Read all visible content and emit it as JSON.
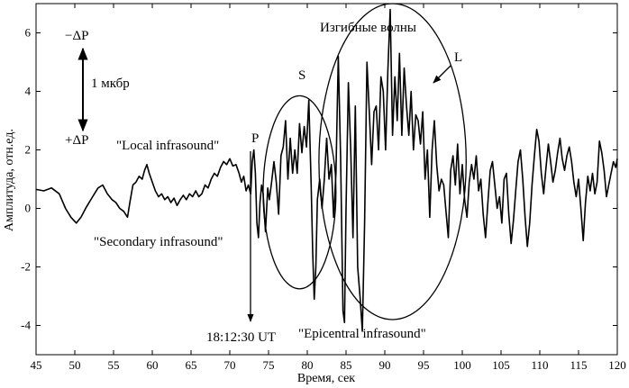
{
  "chart_data": {
    "type": "line",
    "xlabel": "Время, сек",
    "ylabel": "Амплитуда, отн.ед.",
    "xlim": [
      45,
      120
    ],
    "ylim": [
      -5,
      7
    ],
    "x_ticks": [
      45,
      50,
      55,
      60,
      65,
      70,
      75,
      80,
      85,
      90,
      95,
      100,
      105,
      110,
      115,
      120
    ],
    "y_ticks": [
      -4,
      -2,
      0,
      2,
      4,
      6
    ],
    "grid": false,
    "series": [
      {
        "color": "#000000",
        "points": [
          [
            45.0,
            0.65
          ],
          [
            46.0,
            0.6
          ],
          [
            47.0,
            0.7
          ],
          [
            48.0,
            0.5
          ],
          [
            48.8,
            0.0
          ],
          [
            49.5,
            -0.3
          ],
          [
            50.2,
            -0.5
          ],
          [
            50.8,
            -0.3
          ],
          [
            51.5,
            0.05
          ],
          [
            52.3,
            0.4
          ],
          [
            53.0,
            0.7
          ],
          [
            53.6,
            0.8
          ],
          [
            54.2,
            0.5
          ],
          [
            54.8,
            0.3
          ],
          [
            55.3,
            0.2
          ],
          [
            55.8,
            0.0
          ],
          [
            56.3,
            -0.1
          ],
          [
            56.8,
            -0.3
          ],
          [
            57.1,
            0.2
          ],
          [
            57.5,
            0.8
          ],
          [
            57.9,
            0.9
          ],
          [
            58.3,
            1.1
          ],
          [
            58.7,
            1.0
          ],
          [
            59.0,
            1.3
          ],
          [
            59.3,
            1.5
          ],
          [
            59.6,
            1.2
          ],
          [
            60.0,
            0.9
          ],
          [
            60.4,
            0.6
          ],
          [
            60.8,
            0.4
          ],
          [
            61.2,
            0.5
          ],
          [
            61.6,
            0.3
          ],
          [
            62.0,
            0.4
          ],
          [
            62.4,
            0.2
          ],
          [
            62.8,
            0.35
          ],
          [
            63.2,
            0.1
          ],
          [
            63.6,
            0.3
          ],
          [
            64.0,
            0.45
          ],
          [
            64.4,
            0.3
          ],
          [
            64.8,
            0.5
          ],
          [
            65.2,
            0.4
          ],
          [
            65.6,
            0.6
          ],
          [
            66.0,
            0.4
          ],
          [
            66.4,
            0.5
          ],
          [
            66.8,
            0.8
          ],
          [
            67.2,
            0.7
          ],
          [
            67.6,
            1.0
          ],
          [
            68.0,
            1.2
          ],
          [
            68.4,
            1.1
          ],
          [
            68.8,
            1.4
          ],
          [
            69.2,
            1.6
          ],
          [
            69.6,
            1.5
          ],
          [
            70.0,
            1.7
          ],
          [
            70.4,
            1.45
          ],
          [
            70.8,
            1.5
          ],
          [
            71.2,
            1.2
          ],
          [
            71.5,
            0.9
          ],
          [
            71.8,
            1.1
          ],
          [
            72.1,
            0.6
          ],
          [
            72.4,
            0.8
          ],
          [
            72.7,
            0.5
          ],
          [
            72.9,
            1.6
          ],
          [
            73.1,
            2.0
          ],
          [
            73.3,
            1.2
          ],
          [
            73.5,
            -0.5
          ],
          [
            73.7,
            -1.0
          ],
          [
            73.9,
            0.2
          ],
          [
            74.1,
            0.8
          ],
          [
            74.3,
            0.5
          ],
          [
            74.6,
            -0.8
          ],
          [
            74.9,
            0.7
          ],
          [
            75.1,
            0.3
          ],
          [
            75.4,
            0.9
          ],
          [
            75.7,
            1.6
          ],
          [
            76.0,
            0.9
          ],
          [
            76.3,
            -0.2
          ],
          [
            76.6,
            1.8
          ],
          [
            76.9,
            2.1
          ],
          [
            77.2,
            3.0
          ],
          [
            77.5,
            1.0
          ],
          [
            77.8,
            2.4
          ],
          [
            78.1,
            1.2
          ],
          [
            78.4,
            2.0
          ],
          [
            78.7,
            1.2
          ],
          [
            79.0,
            2.9
          ],
          [
            79.3,
            1.9
          ],
          [
            79.6,
            2.8
          ],
          [
            79.9,
            2.1
          ],
          [
            80.2,
            3.7
          ],
          [
            80.5,
            0.8
          ],
          [
            80.7,
            -1.5
          ],
          [
            80.9,
            -3.1
          ],
          [
            81.1,
            -2.0
          ],
          [
            81.3,
            0.3
          ],
          [
            81.6,
            1.0
          ],
          [
            81.9,
            0.0
          ],
          [
            82.2,
            1.0
          ],
          [
            82.5,
            2.4
          ],
          [
            82.8,
            1.0
          ],
          [
            83.1,
            1.5
          ],
          [
            83.4,
            -0.3
          ],
          [
            83.7,
            1.2
          ],
          [
            84.0,
            5.2
          ],
          [
            84.3,
            1.7
          ],
          [
            84.6,
            -3.5
          ],
          [
            84.8,
            -3.9
          ],
          [
            85.0,
            0.0
          ],
          [
            85.3,
            4.3
          ],
          [
            85.6,
            2.0
          ],
          [
            85.9,
            -1.0
          ],
          [
            86.2,
            3.5
          ],
          [
            86.5,
            -2.0
          ],
          [
            86.8,
            -3.0
          ],
          [
            87.1,
            -4.2
          ],
          [
            87.4,
            -0.5
          ],
          [
            87.7,
            5.0
          ],
          [
            88.0,
            3.3
          ],
          [
            88.3,
            1.5
          ],
          [
            88.6,
            3.3
          ],
          [
            88.9,
            3.5
          ],
          [
            89.2,
            2.0
          ],
          [
            89.5,
            4.5
          ],
          [
            89.8,
            4.0
          ],
          [
            90.1,
            2.0
          ],
          [
            90.4,
            4.7
          ],
          [
            90.7,
            6.8
          ],
          [
            91.0,
            2.5
          ],
          [
            91.3,
            4.5
          ],
          [
            91.6,
            3.0
          ],
          [
            91.9,
            5.3
          ],
          [
            92.2,
            2.5
          ],
          [
            92.5,
            4.8
          ],
          [
            92.8,
            3.5
          ],
          [
            93.1,
            2.5
          ],
          [
            93.4,
            4.0
          ],
          [
            93.7,
            2.0
          ],
          [
            94.0,
            3.2
          ],
          [
            94.3,
            3.0
          ],
          [
            94.6,
            2.2
          ],
          [
            94.9,
            3.3
          ],
          [
            95.2,
            1.0
          ],
          [
            95.5,
            2.0
          ],
          [
            95.8,
            -0.3
          ],
          [
            96.1,
            2.0
          ],
          [
            96.4,
            3.0
          ],
          [
            96.7,
            1.5
          ],
          [
            97.0,
            0.6
          ],
          [
            97.3,
            1.0
          ],
          [
            97.6,
            0.8
          ],
          [
            97.9,
            -0.1
          ],
          [
            98.2,
            -1.0
          ],
          [
            98.5,
            1.3
          ],
          [
            98.8,
            1.8
          ],
          [
            99.1,
            0.8
          ],
          [
            99.4,
            2.2
          ],
          [
            99.7,
            0.5
          ],
          [
            100.0,
            1.5
          ],
          [
            100.3,
            0.3
          ],
          [
            100.6,
            -0.3
          ],
          [
            100.9,
            0.9
          ],
          [
            101.2,
            1.5
          ],
          [
            101.5,
            1.0
          ],
          [
            101.8,
            1.8
          ],
          [
            102.1,
            0.6
          ],
          [
            102.4,
            1.0
          ],
          [
            102.7,
            -0.2
          ],
          [
            103.0,
            -1.0
          ],
          [
            103.3,
            0.2
          ],
          [
            103.6,
            1.3
          ],
          [
            103.9,
            1.6
          ],
          [
            104.2,
            0.8
          ],
          [
            104.5,
            0.0
          ],
          [
            104.8,
            0.4
          ],
          [
            105.1,
            -0.5
          ],
          [
            105.4,
            1.0
          ],
          [
            105.7,
            1.2
          ],
          [
            106.0,
            -0.2
          ],
          [
            106.3,
            -1.2
          ],
          [
            106.6,
            -0.4
          ],
          [
            106.9,
            0.6
          ],
          [
            107.2,
            1.6
          ],
          [
            107.5,
            2.0
          ],
          [
            107.8,
            1.0
          ],
          [
            108.1,
            -0.3
          ],
          [
            108.4,
            -1.3
          ],
          [
            108.7,
            -0.5
          ],
          [
            109.0,
            0.8
          ],
          [
            109.3,
            1.8
          ],
          [
            109.6,
            2.7
          ],
          [
            109.9,
            2.3
          ],
          [
            110.2,
            1.2
          ],
          [
            110.5,
            0.5
          ],
          [
            110.8,
            1.4
          ],
          [
            111.1,
            2.2
          ],
          [
            111.4,
            1.6
          ],
          [
            111.7,
            0.9
          ],
          [
            112.0,
            1.3
          ],
          [
            112.3,
            1.9
          ],
          [
            112.6,
            2.4
          ],
          [
            112.9,
            1.7
          ],
          [
            113.2,
            1.3
          ],
          [
            113.5,
            1.8
          ],
          [
            113.8,
            2.1
          ],
          [
            114.1,
            1.6
          ],
          [
            114.4,
            0.9
          ],
          [
            114.7,
            0.4
          ],
          [
            115.0,
            1.0
          ],
          [
            115.3,
            0.0
          ],
          [
            115.6,
            -1.1
          ],
          [
            115.9,
            0.2
          ],
          [
            116.2,
            1.1
          ],
          [
            116.5,
            0.6
          ],
          [
            116.8,
            1.2
          ],
          [
            117.1,
            0.5
          ],
          [
            117.4,
            0.9
          ],
          [
            117.7,
            2.3
          ],
          [
            118.0,
            1.9
          ],
          [
            118.3,
            1.3
          ],
          [
            118.6,
            0.4
          ],
          [
            118.9,
            0.8
          ],
          [
            119.2,
            1.2
          ],
          [
            119.5,
            1.6
          ],
          [
            119.8,
            1.4
          ],
          [
            120.0,
            1.7
          ]
        ]
      }
    ],
    "ellipses": [
      {
        "name": "S",
        "cx": 79.0,
        "cy": 0.55,
        "rx": 4.7,
        "ry": 3.3
      },
      {
        "name": "L",
        "cx": 91.0,
        "cy": 1.6,
        "rx": 9.5,
        "ry": 5.4
      }
    ],
    "annotations": {
      "local": "\"Local infrasound\"",
      "secondary": "\"Secondary infrasound\"",
      "epicentral": "\"Epicentral infrasound\"",
      "bending": "Изгибные волны",
      "p": "P",
      "s": "S",
      "l": "L",
      "time": "18:12:30 UT",
      "minus_dp": "−ΔP",
      "plus_dp": "+ΔP",
      "scale": "1 мкбр"
    }
  }
}
